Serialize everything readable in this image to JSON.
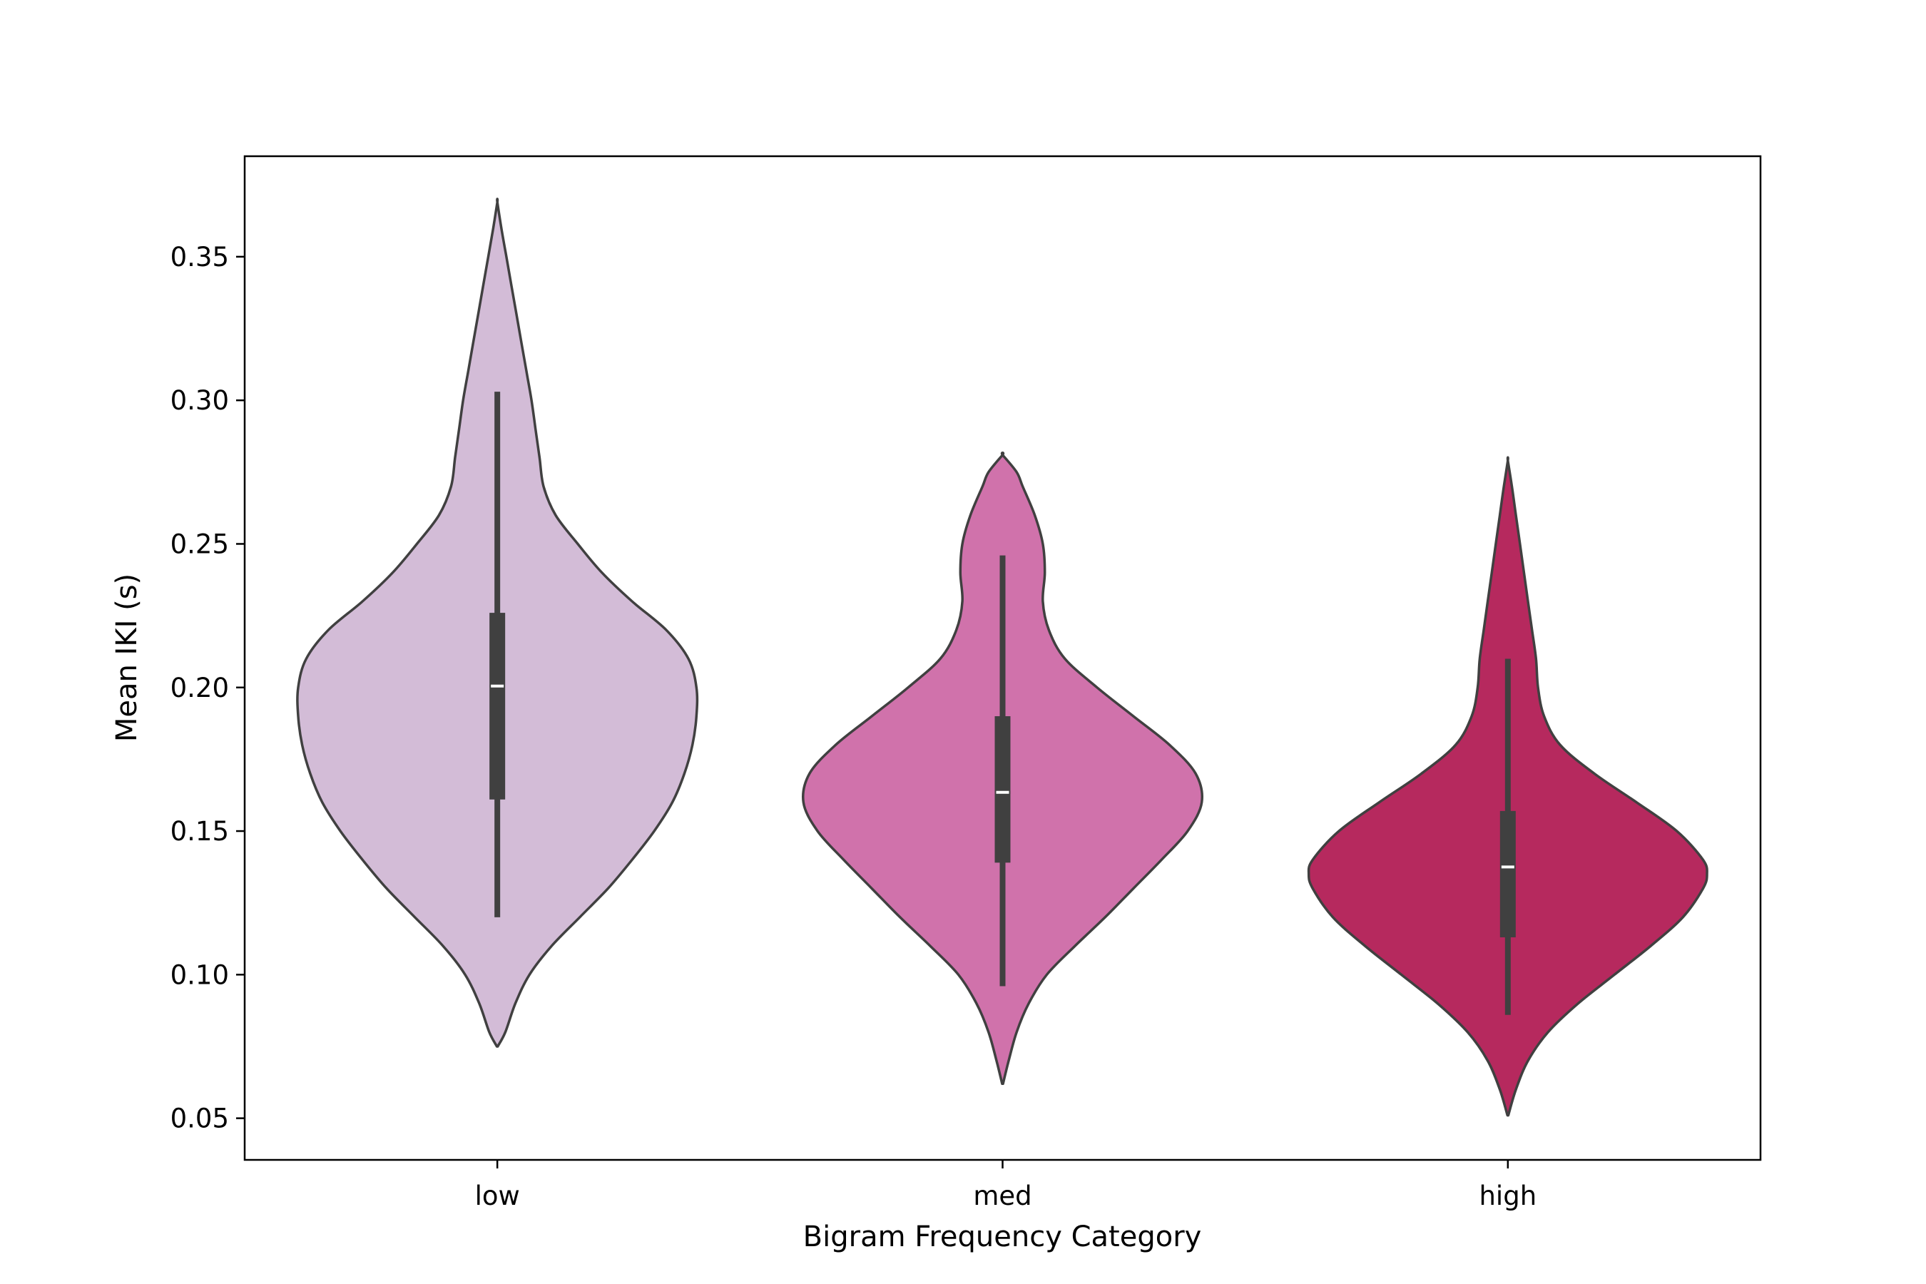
{
  "chart_data": {
    "type": "violin",
    "title": "",
    "xlabel": "Bigram Frequency Category",
    "ylabel": "Mean IKI (s)",
    "ylim": [
      0.0355,
      0.385
    ],
    "yticks": [
      0.05,
      0.1,
      0.15,
      0.2,
      0.25,
      0.3,
      0.35
    ],
    "ytick_labels": [
      "0.05",
      "0.10",
      "0.15",
      "0.20",
      "0.25",
      "0.30",
      "0.35"
    ],
    "categories": [
      "low",
      "med",
      "high"
    ],
    "grid": false,
    "legend": "none",
    "line_color": "#404040",
    "violins": [
      {
        "category": "low",
        "color": "#d3bcd7",
        "median": 0.2005,
        "q1": 0.161,
        "q3": 0.226,
        "whisker_low": 0.12,
        "whisker_high": 0.303,
        "min": 0.075,
        "max": 0.369,
        "density": [
          [
            0.075,
            0.002
          ],
          [
            0.08,
            0.04
          ],
          [
            0.09,
            0.09
          ],
          [
            0.1,
            0.16
          ],
          [
            0.11,
            0.27
          ],
          [
            0.12,
            0.41
          ],
          [
            0.13,
            0.55
          ],
          [
            0.14,
            0.67
          ],
          [
            0.15,
            0.78
          ],
          [
            0.16,
            0.87
          ],
          [
            0.17,
            0.93
          ],
          [
            0.18,
            0.97
          ],
          [
            0.19,
            0.99
          ],
          [
            0.2,
            0.99
          ],
          [
            0.21,
            0.95
          ],
          [
            0.22,
            0.84
          ],
          [
            0.23,
            0.67
          ],
          [
            0.24,
            0.52
          ],
          [
            0.25,
            0.4
          ],
          [
            0.26,
            0.29
          ],
          [
            0.27,
            0.23
          ],
          [
            0.28,
            0.21
          ],
          [
            0.29,
            0.19
          ],
          [
            0.3,
            0.17
          ],
          [
            0.31,
            0.145
          ],
          [
            0.32,
            0.12
          ],
          [
            0.33,
            0.095
          ],
          [
            0.34,
            0.07
          ],
          [
            0.35,
            0.045
          ],
          [
            0.36,
            0.02
          ],
          [
            0.369,
            0.0
          ]
        ]
      },
      {
        "category": "med",
        "color": "#d072ab",
        "median": 0.1635,
        "q1": 0.139,
        "q3": 0.19,
        "whisker_low": 0.096,
        "whisker_high": 0.246,
        "min": 0.062,
        "max": 0.281,
        "density": [
          [
            0.062,
            0.002
          ],
          [
            0.07,
            0.03
          ],
          [
            0.08,
            0.07
          ],
          [
            0.09,
            0.13
          ],
          [
            0.1,
            0.22
          ],
          [
            0.11,
            0.36
          ],
          [
            0.12,
            0.51
          ],
          [
            0.13,
            0.65
          ],
          [
            0.14,
            0.79
          ],
          [
            0.15,
            0.92
          ],
          [
            0.16,
            0.99
          ],
          [
            0.17,
            0.96
          ],
          [
            0.18,
            0.83
          ],
          [
            0.19,
            0.65
          ],
          [
            0.2,
            0.47
          ],
          [
            0.21,
            0.31
          ],
          [
            0.22,
            0.23
          ],
          [
            0.23,
            0.2
          ],
          [
            0.24,
            0.21
          ],
          [
            0.25,
            0.2
          ],
          [
            0.26,
            0.16
          ],
          [
            0.27,
            0.1
          ],
          [
            0.275,
            0.07
          ],
          [
            0.281,
            0.0
          ]
        ]
      },
      {
        "category": "high",
        "color": "#b6295e",
        "median": 0.1375,
        "q1": 0.113,
        "q3": 0.157,
        "whisker_low": 0.086,
        "whisker_high": 0.21,
        "min": 0.051,
        "max": 0.279,
        "density": [
          [
            0.051,
            0.002
          ],
          [
            0.06,
            0.04
          ],
          [
            0.07,
            0.1
          ],
          [
            0.08,
            0.2
          ],
          [
            0.09,
            0.35
          ],
          [
            0.1,
            0.53
          ],
          [
            0.11,
            0.71
          ],
          [
            0.12,
            0.87
          ],
          [
            0.13,
            0.97
          ],
          [
            0.135,
            0.99
          ],
          [
            0.14,
            0.97
          ],
          [
            0.15,
            0.84
          ],
          [
            0.16,
            0.64
          ],
          [
            0.17,
            0.43
          ],
          [
            0.18,
            0.26
          ],
          [
            0.19,
            0.18
          ],
          [
            0.2,
            0.15
          ],
          [
            0.21,
            0.14
          ],
          [
            0.22,
            0.12
          ],
          [
            0.23,
            0.1
          ],
          [
            0.24,
            0.08
          ],
          [
            0.25,
            0.06
          ],
          [
            0.26,
            0.04
          ],
          [
            0.27,
            0.02
          ],
          [
            0.279,
            0.0
          ]
        ]
      }
    ]
  }
}
